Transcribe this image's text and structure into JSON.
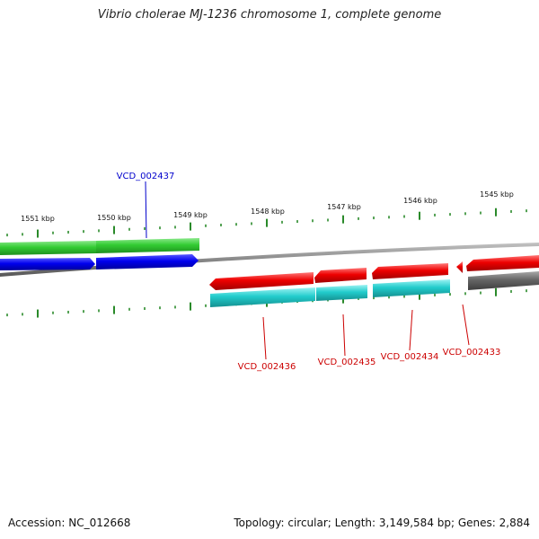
{
  "title": "Vibrio cholerae MJ-1236 chromosome 1, complete genome",
  "footer": {
    "accession": "Accession: NC_012668",
    "summary": "Topology: circular; Length: 3,149,584 bp; Genes: 2,884"
  },
  "ticks": [
    "1551 kbp",
    "1550 kbp",
    "1549 kbp",
    "1548 kbp",
    "1547 kbp",
    "1546 kbp",
    "1545 kbp"
  ],
  "genes": [
    {
      "label": "VCD_002437",
      "color": "#0000cc"
    },
    {
      "label": "VCD_002436",
      "color": "#cc0000"
    },
    {
      "label": "VCD_002435",
      "color": "#cc0000"
    },
    {
      "label": "VCD_002434",
      "color": "#cc0000"
    },
    {
      "label": "VCD_002433",
      "color": "#cc0000"
    }
  ],
  "colors": {
    "forward_cds": "#0000ee",
    "reverse_cds": "#ee0000",
    "forward_gene": "#33cc33",
    "reverse_gene": "#22cccc",
    "other_gene": "#666666",
    "backbone": "#888888",
    "tick": "#2a8a2a"
  }
}
